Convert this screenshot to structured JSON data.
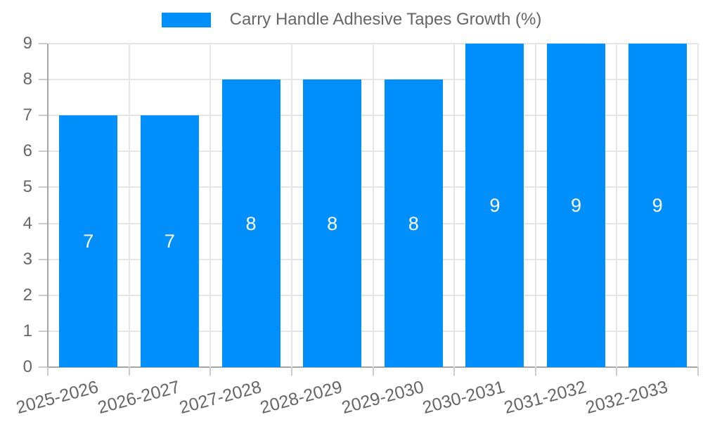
{
  "legend": {
    "series_label": "Carry Handle Adhesive Tapes Growth (%)"
  },
  "chart_data": {
    "type": "bar",
    "title": "Carry Handle Adhesive Tapes Growth (%)",
    "categories": [
      "2025-2026",
      "2026-2027",
      "2027-2028",
      "2028-2029",
      "2029-2030",
      "2030-2031",
      "2031-2032",
      "2032-2033"
    ],
    "values": [
      7,
      7,
      8,
      8,
      8,
      9,
      9,
      9
    ],
    "xlabel": "",
    "ylabel": "",
    "ylim": [
      0,
      9
    ],
    "ytick_step": 1,
    "grid": true,
    "legend_position": "top",
    "colors": {
      "bar": "#008FFB",
      "bar_label": "#ffffff",
      "axis_text": "#666666",
      "gridline": "#e5e5e5",
      "axis_line": "#a6a6a6",
      "tick_mark": "#cccccc"
    }
  }
}
